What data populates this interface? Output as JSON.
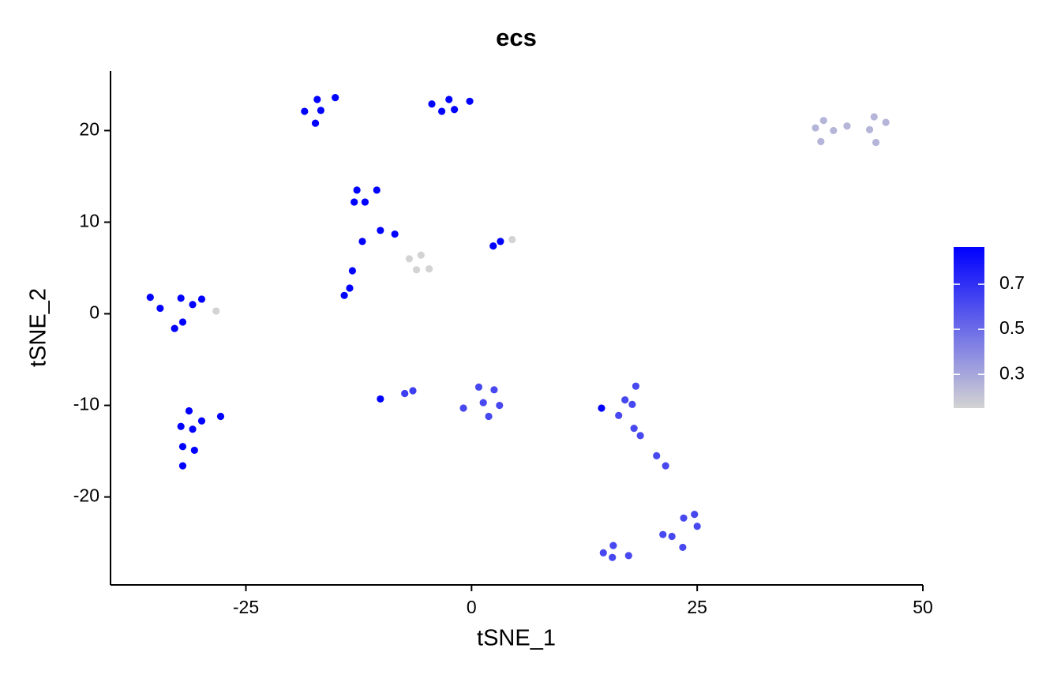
{
  "chart_data": {
    "type": "scatter",
    "title": "ecs",
    "x_label": "tSNE_1",
    "y_label": "tSNE_2",
    "xlim": [
      -40,
      50
    ],
    "ylim": [
      -29.6,
      26.5
    ],
    "xticks": [
      -25,
      0,
      25,
      50
    ],
    "yticks": [
      -20,
      -10,
      0,
      10,
      20
    ],
    "color_scale": {
      "low": "#d3d3d3",
      "high": "#0000ff",
      "lim": [
        0.15,
        0.865
      ],
      "ticks": [
        0.3,
        0.5,
        0.7
      ]
    },
    "x": [
      -18.5,
      -17.1,
      -15.1,
      -16.7,
      -17.3,
      -4.4,
      -3.3,
      -2.5,
      -1.9,
      -0.2,
      38.1,
      39.0,
      38.7,
      40.1,
      41.6,
      44.1,
      44.6,
      44.8,
      45.9,
      -12.7,
      -10.5,
      -13.0,
      -11.8,
      -10.1,
      -8.5,
      -12.1,
      -13.2,
      -13.5,
      -14.1,
      -6.9,
      -5.6,
      -6.1,
      -4.7,
      2.4,
      3.2,
      4.5,
      -35.6,
      -34.5,
      -32.2,
      -29.9,
      -30.9,
      -32.0,
      -32.9,
      -28.3,
      -31.3,
      -27.8,
      -29.9,
      -32.2,
      -30.9,
      -32.0,
      -30.7,
      -32.0,
      -10.1,
      -7.4,
      -6.5,
      0.8,
      2.5,
      -0.9,
      1.3,
      3.1,
      1.9,
      14.4,
      18.2,
      17.0,
      17.8,
      16.3,
      18.0,
      18.7,
      20.5,
      21.5,
      24.7,
      23.5,
      25.0,
      21.2,
      22.2,
      23.4,
      14.6,
      15.7,
      15.6,
      17.4
    ],
    "y": [
      22.1,
      23.4,
      23.6,
      22.2,
      20.8,
      22.9,
      22.1,
      23.4,
      22.3,
      23.2,
      20.3,
      21.1,
      18.8,
      20.0,
      20.5,
      20.1,
      21.5,
      18.7,
      20.9,
      13.5,
      13.5,
      12.2,
      12.2,
      9.1,
      8.7,
      7.9,
      4.7,
      2.8,
      2.0,
      6.0,
      6.4,
      4.8,
      4.9,
      7.4,
      7.9,
      8.1,
      1.8,
      0.6,
      1.7,
      1.6,
      1.0,
      -0.9,
      -1.6,
      0.3,
      -10.6,
      -11.2,
      -11.7,
      -12.3,
      -12.6,
      -14.5,
      -14.9,
      -16.6,
      -9.3,
      -8.7,
      -8.4,
      -8.0,
      -8.3,
      -10.3,
      -9.7,
      -10.0,
      -11.2,
      -10.3,
      -7.9,
      -9.4,
      -9.9,
      -11.1,
      -12.5,
      -13.3,
      -15.5,
      -16.6,
      -21.9,
      -22.3,
      -23.2,
      -24.1,
      -24.3,
      -25.5,
      -26.1,
      -25.3,
      -26.6,
      -26.4
    ],
    "color_values": [
      0.86,
      0.86,
      0.86,
      0.86,
      0.86,
      0.86,
      0.86,
      0.86,
      0.86,
      0.86,
      0.25,
      0.25,
      0.25,
      0.25,
      0.25,
      0.25,
      0.25,
      0.25,
      0.25,
      0.86,
      0.86,
      0.86,
      0.86,
      0.86,
      0.86,
      0.86,
      0.86,
      0.86,
      0.86,
      0.15,
      0.15,
      0.15,
      0.15,
      0.86,
      0.86,
      0.15,
      0.86,
      0.86,
      0.86,
      0.86,
      0.86,
      0.86,
      0.86,
      0.15,
      0.86,
      0.86,
      0.86,
      0.86,
      0.86,
      0.86,
      0.86,
      0.86,
      0.86,
      0.65,
      0.65,
      0.62,
      0.62,
      0.62,
      0.62,
      0.62,
      0.62,
      0.86,
      0.62,
      0.62,
      0.62,
      0.62,
      0.62,
      0.62,
      0.62,
      0.62,
      0.62,
      0.62,
      0.62,
      0.62,
      0.62,
      0.62,
      0.62,
      0.62,
      0.62,
      0.62
    ]
  }
}
